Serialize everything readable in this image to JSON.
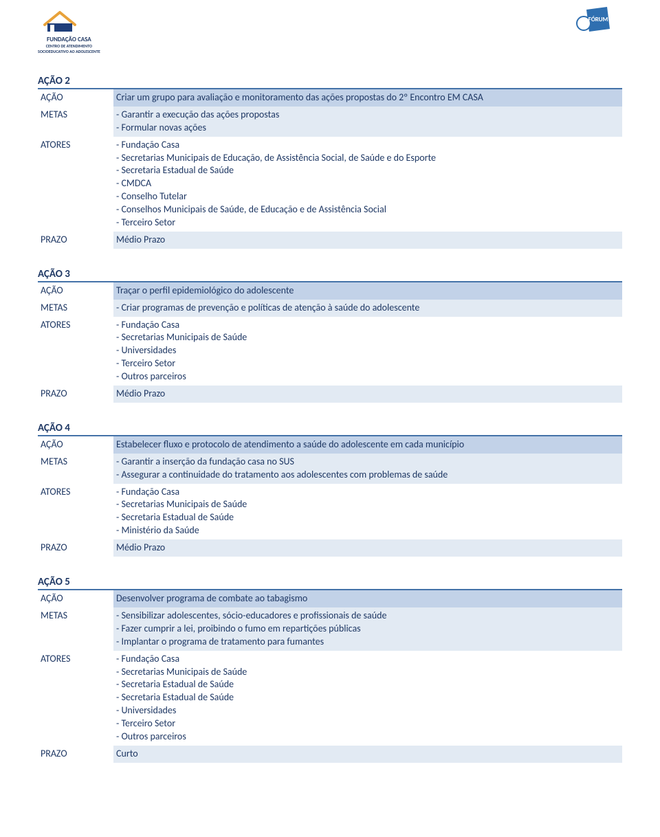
{
  "colors": {
    "text": "#1f3864",
    "band_dark": "#c2d2e8",
    "band_light": "#e2eaf3",
    "rule": "#4472a8",
    "white": "#ffffff"
  },
  "header": {
    "left_logo_line1": "FUNDAÇÃO CASA",
    "left_logo_line2": "CENTRO DE ATENDIMENTO",
    "left_logo_line3": "SOCIOEDUCATIVO AO ADOLESCENTE",
    "right_logo": "FÓRUM"
  },
  "labels": {
    "acao": "AÇÃO",
    "metas": "METAS",
    "atores": "ATORES",
    "prazo": "PRAZO"
  },
  "actions": [
    {
      "title": "AÇÃO 2",
      "acao": "Criar um grupo para avaliação e monitoramento das ações propostas do 2º Encontro EM CASA",
      "metas": [
        "- Garantir a execução das ações propostas",
        "- Formular novas ações"
      ],
      "atores": [
        "- Fundação Casa",
        "- Secretarias Municipais de Educação, de Assistência Social, de Saúde e do Esporte",
        "- Secretaria Estadual de Saúde",
        "- CMDCA",
        "- Conselho Tutelar",
        "- Conselhos Municipais de Saúde, de Educação e de Assistência Social",
        "- Terceiro Setor"
      ],
      "prazo": "Médio Prazo"
    },
    {
      "title": "AÇÃO 3",
      "acao": "Traçar o perfil epidemiológico do adolescente",
      "metas": [
        "- Criar programas de prevenção e políticas de atenção à saúde do adolescente"
      ],
      "atores": [
        "- Fundação Casa",
        "- Secretarias Municipais de Saúde",
        "- Universidades",
        "- Terceiro Setor",
        "- Outros parceiros"
      ],
      "prazo": "Médio Prazo"
    },
    {
      "title": "AÇÃO 4",
      "acao": "Estabelecer fluxo e protocolo de atendimento a saúde do adolescente em cada município",
      "metas": [
        "- Garantir a inserção da fundação casa no SUS",
        "- Assegurar a continuidade do tratamento aos adolescentes com problemas de saúde"
      ],
      "atores": [
        "- Fundação Casa",
        "- Secretarias Municipais de Saúde",
        "- Secretaria Estadual de Saúde",
        "- Ministério da Saúde"
      ],
      "prazo": "Médio Prazo"
    },
    {
      "title": "AÇÃO 5",
      "acao": "Desenvolver programa de combate ao tabagismo",
      "metas": [
        "- Sensibilizar adolescentes, sócio-educadores e profissionais de saúde",
        "- Fazer cumprir a lei, proibindo o fumo em repartições públicas",
        "- Implantar o programa de tratamento para fumantes"
      ],
      "atores": [
        "- Fundação Casa",
        "- Secretarias Municipais de Saúde",
        "- Secretaria Estadual de Saúde",
        "- Secretaria Estadual de Saúde",
        "- Universidades",
        "- Terceiro Setor",
        "- Outros parceiros"
      ],
      "prazo": "Curto"
    }
  ]
}
